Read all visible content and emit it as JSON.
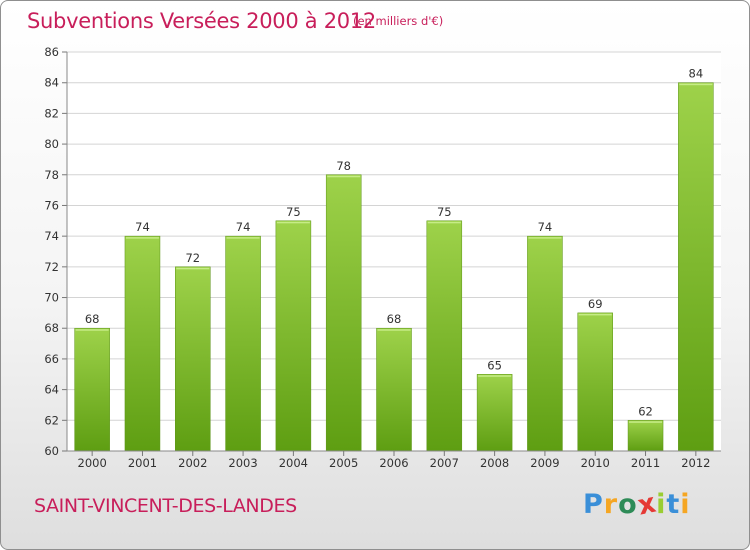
{
  "chart_data": {
    "type": "bar",
    "title": "Subventions Versées 2000 à 2012",
    "subtitle": "(en milliers d'€)",
    "categories": [
      "2000",
      "2001",
      "2002",
      "2003",
      "2004",
      "2005",
      "2006",
      "2007",
      "2008",
      "2009",
      "2010",
      "2011",
      "2012"
    ],
    "values": [
      68,
      74,
      72,
      74,
      75,
      78,
      68,
      75,
      65,
      74,
      69,
      62,
      84
    ],
    "ylim": [
      60,
      86
    ],
    "yticks": [
      60,
      62,
      64,
      66,
      68,
      70,
      72,
      74,
      76,
      78,
      80,
      82,
      84,
      86
    ],
    "grid": true,
    "bar_color": "#7cbc28"
  },
  "commune": "SAINT-VINCENT-DES-LANDES",
  "logo": {
    "letters": [
      "P",
      "r",
      "o",
      "x",
      "i",
      "t",
      "i"
    ],
    "colors": [
      "#3a8fd8",
      "#f5a623",
      "#2e8b57",
      "#e53935",
      "#9acd32",
      "#3a8fd8",
      "#f5a623"
    ]
  }
}
